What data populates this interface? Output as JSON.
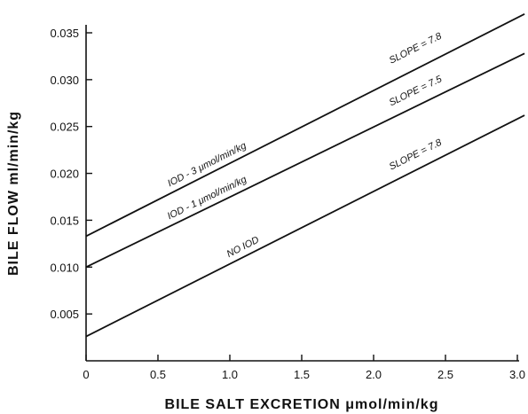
{
  "chart_data": {
    "type": "line",
    "title": "",
    "xlabel": "BILE SALT EXCRETION μmol/min/kg",
    "ylabel": "BILE FLOW ml/min/kg",
    "xlim": [
      0,
      3.0
    ],
    "ylim": [
      0,
      0.035
    ],
    "x_ticks": [
      "0",
      "0.5",
      "1.0",
      "1.5",
      "2.0",
      "2.5",
      "3.0"
    ],
    "y_ticks": [
      "0.005",
      "0.010",
      "0.015",
      "0.020",
      "0.025",
      "0.030",
      "0.035"
    ],
    "grid": false,
    "series": [
      {
        "name": "IOD - 3 μmol/min/kg",
        "slope_label": "SLOPE = 7.8",
        "x": [
          0,
          3.05
        ],
        "y": [
          0.0133,
          0.037
        ]
      },
      {
        "name": "IOD - 1 μmol/min/kg",
        "slope_label": "SLOPE = 7.5",
        "x": [
          0,
          3.05
        ],
        "y": [
          0.01,
          0.0328
        ]
      },
      {
        "name": "NO IOD",
        "slope_label": "SLOPE = 7.8",
        "x": [
          0,
          3.05
        ],
        "y": [
          0.0026,
          0.0262
        ]
      }
    ]
  }
}
